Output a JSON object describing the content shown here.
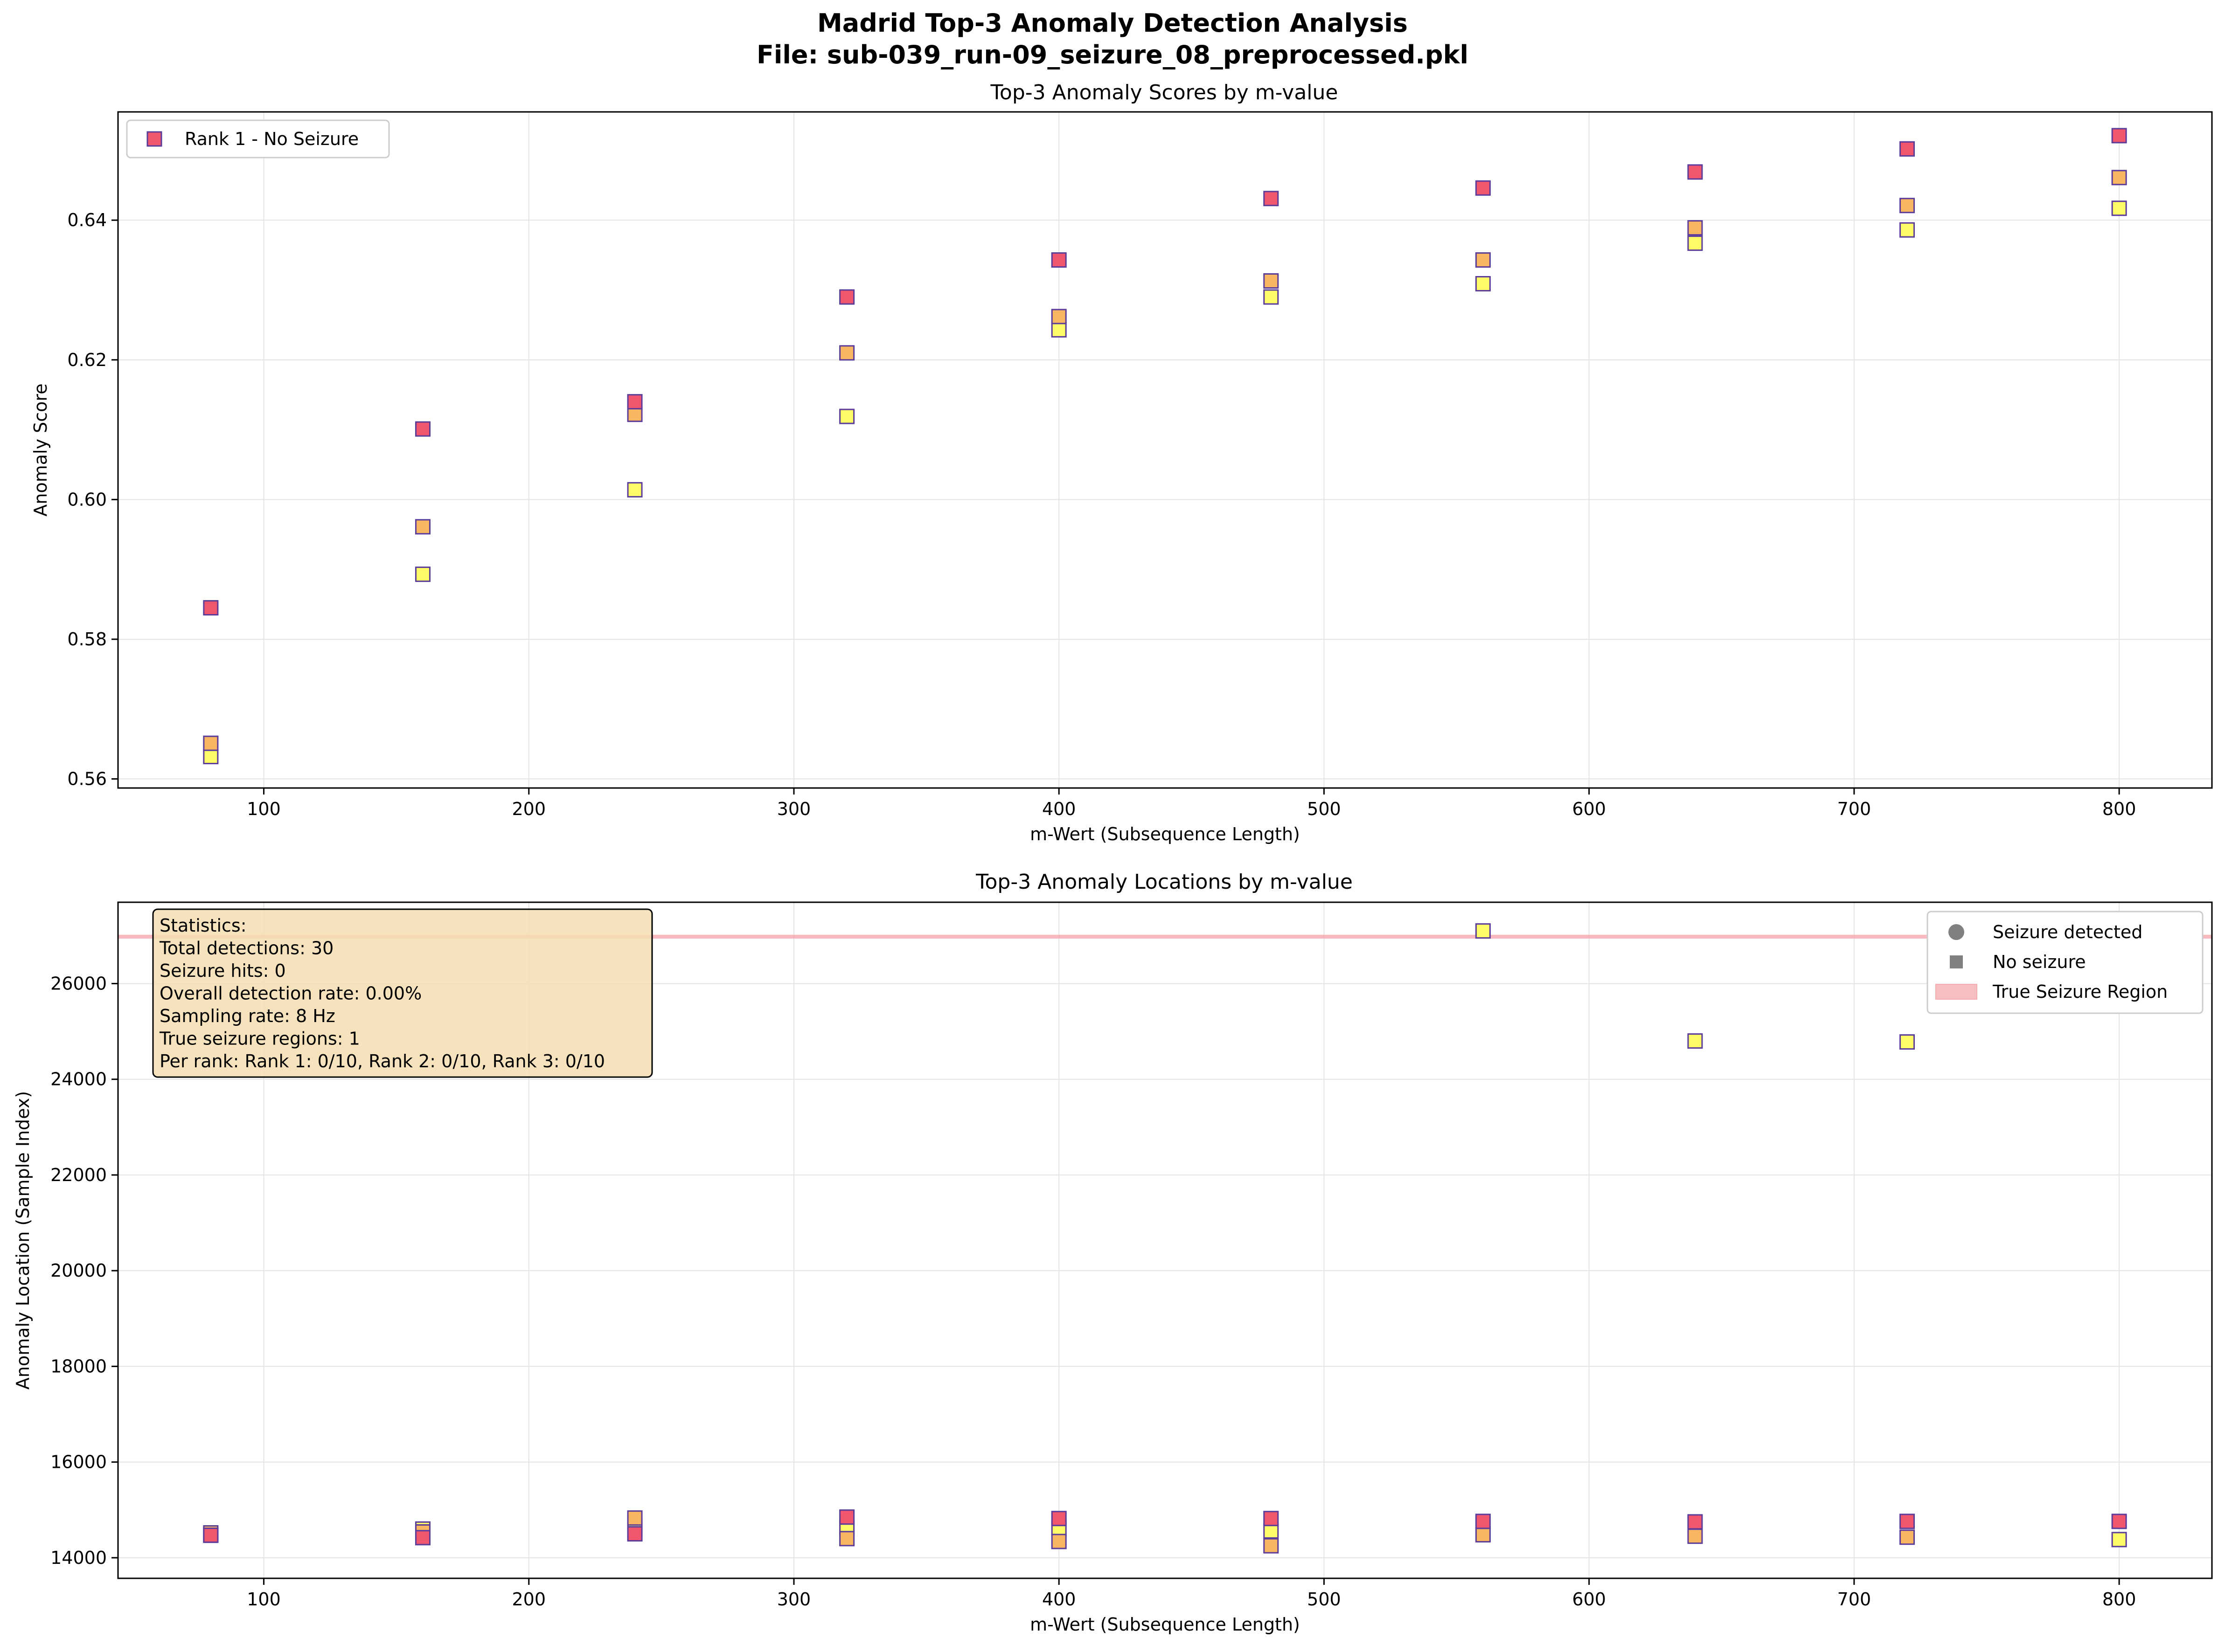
{
  "figure": {
    "title_line1": "Madrid Top-3 Anomaly Detection Analysis",
    "title_line2": "File: sub-039_run-09_seizure_08_preprocessed.pkl"
  },
  "colors": {
    "rank1": "#f0566e",
    "rank2": "#f8b662",
    "rank3": "#fdfb66",
    "marker_edge": "#5b3c9a",
    "seizure_region": "#f4a3a8",
    "legend_marker": "#808080",
    "stats_box": "#f5deb3",
    "grid": "#e4e4e4"
  },
  "chart_data": [
    {
      "type": "scatter",
      "title": "Top-3 Anomaly Scores by m-value",
      "xlabel": "m-Wert (Subsequence Length)",
      "ylabel": "Anomaly Score",
      "xlim": [
        45,
        835
      ],
      "ylim": [
        0.5587,
        0.6555
      ],
      "xticks": [
        100,
        200,
        300,
        400,
        500,
        600,
        700,
        800
      ],
      "yticks": [
        0.56,
        0.58,
        0.6,
        0.62,
        0.64
      ],
      "ytick_labels": [
        "0.56",
        "0.58",
        "0.60",
        "0.62",
        "0.64"
      ],
      "grid": true,
      "legend_position": "upper-left",
      "legend": [
        {
          "label": "Rank 1 - No Seizure",
          "marker": "square",
          "color_key": "rank1"
        }
      ],
      "x": [
        80,
        160,
        240,
        320,
        400,
        480,
        560,
        640,
        720,
        800
      ],
      "series": [
        {
          "name": "Rank 1",
          "color_key": "rank1",
          "marker": "square",
          "values": [
            0.5845,
            0.6101,
            0.614,
            0.629,
            0.6343,
            0.6431,
            0.6446,
            0.6469,
            0.6502,
            0.6521
          ]
        },
        {
          "name": "Rank 2",
          "color_key": "rank2",
          "marker": "square",
          "values": [
            0.5651,
            0.5961,
            0.6122,
            0.621,
            0.6262,
            0.6313,
            0.6343,
            0.6389,
            0.6421,
            0.6461
          ]
        },
        {
          "name": "Rank 3",
          "color_key": "rank3",
          "marker": "square",
          "values": [
            0.5632,
            0.5893,
            0.6014,
            0.6119,
            0.6243,
            0.629,
            0.6309,
            0.6367,
            0.6386,
            0.6417
          ]
        }
      ]
    },
    {
      "type": "scatter",
      "title": "Top-3 Anomaly Locations by m-value",
      "xlabel": "m-Wert (Subsequence Length)",
      "ylabel": "Anomaly Location (Sample Index)",
      "xlim": [
        45,
        835
      ],
      "ylim": [
        13570,
        27700
      ],
      "xticks": [
        100,
        200,
        300,
        400,
        500,
        600,
        700,
        800
      ],
      "yticks": [
        14000,
        16000,
        18000,
        20000,
        22000,
        24000,
        26000
      ],
      "ytick_labels": [
        "14000",
        "16000",
        "18000",
        "20000",
        "22000",
        "24000",
        "26000"
      ],
      "grid": true,
      "legend_position": "upper-right",
      "legend": [
        {
          "label": "Seizure detected",
          "marker": "circle",
          "color_key": "legend_marker"
        },
        {
          "label": "No seizure",
          "marker": "square",
          "color_key": "legend_marker"
        },
        {
          "label": "True Seizure Region",
          "marker": "patch",
          "color_key": "seizure_region"
        }
      ],
      "seizure_region": {
        "y_start": 26940,
        "y_end": 27020
      },
      "x": [
        80,
        160,
        240,
        320,
        400,
        480,
        560,
        640,
        720,
        800
      ],
      "series": [
        {
          "name": "Rank 1",
          "color_key": "rank1",
          "marker": "square",
          "values": [
            14470,
            14420,
            14500,
            14850,
            14820,
            14820,
            14760,
            14750,
            14760,
            14760
          ]
        },
        {
          "name": "Rank 2",
          "color_key": "rank2",
          "marker": "square",
          "values": [
            14520,
            14540,
            14830,
            14400,
            14340,
            14250,
            14480,
            14450,
            14430,
            null
          ]
        },
        {
          "name": "Rank 3",
          "color_key": "rank3",
          "marker": "square",
          "values": [
            14470,
            14600,
            14630,
            14620,
            14610,
            14560,
            27100,
            24800,
            24780,
            14380
          ]
        }
      ],
      "stats_box": {
        "lines": [
          "Statistics:",
          "Total detections: 30",
          "Seizure hits: 0",
          "Overall detection rate: 0.00%",
          "Sampling rate: 8 Hz",
          "True seizure regions: 1",
          "Per rank: Rank 1: 0/10, Rank 2: 0/10, Rank 3: 0/10"
        ]
      }
    }
  ]
}
